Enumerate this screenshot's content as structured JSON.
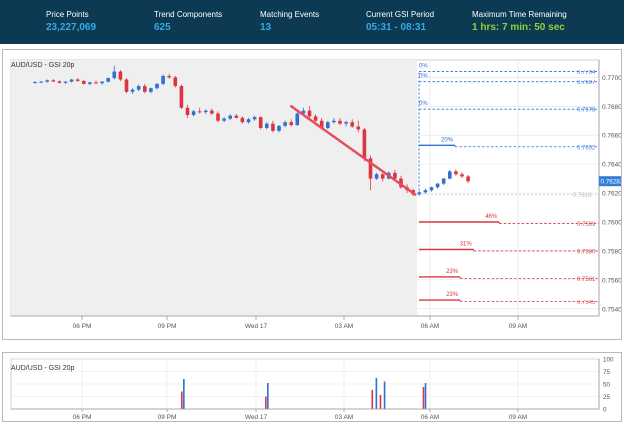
{
  "header": {
    "stats": [
      {
        "label": "Price Points",
        "value": "23,227,069",
        "color": "#36a9e8"
      },
      {
        "label": "Trend Components",
        "value": "625",
        "color": "#36a9e8"
      },
      {
        "label": "Matching Events",
        "value": "13",
        "color": "#36a9e8"
      },
      {
        "label": "Current GSI Period",
        "value": "05:31 - 08:31",
        "color": "#36a9e8"
      },
      {
        "label": "Maximum Time Remaining",
        "value": "1 hrs: 7 min: 50 sec",
        "color": "#8bd33a"
      }
    ]
  },
  "main_chart": {
    "title": "AUD/USD - GSI 20p",
    "current_price": "0.76282",
    "x_ticks": [
      "06 PM",
      "09 PM",
      "Wed 17",
      "03 AM",
      "06 AM",
      "09 AM"
    ],
    "y_ticks": [
      "0.7700",
      "0.7680",
      "0.7660",
      "0.7640",
      "0.7620",
      "0.7600",
      "0.7580",
      "0.7560",
      "0.7540"
    ],
    "colors": {
      "up": "#2f6fd6",
      "down": "#d93641",
      "trend": "#e84a5f",
      "shade": "#efefef"
    }
  },
  "volume_chart": {
    "title": "AUD/USD - GSI 20p",
    "x_ticks": [
      "06 PM",
      "09 PM",
      "Wed 17",
      "03 AM",
      "06 AM",
      "09 AM"
    ],
    "y_ticks": [
      "100",
      "75",
      "50",
      "25",
      "0"
    ]
  },
  "chart_data": [
    {
      "type": "candlestick",
      "title": "AUD/USD - GSI 20p",
      "x_ticks": [
        "06 PM",
        "09 PM",
        "Wed 17",
        "03 AM",
        "06 AM",
        "09 AM"
      ],
      "ylim": [
        0.7535,
        0.7712
      ],
      "current_price": 0.76282,
      "candles": [
        [
          0.76965,
          0.76972,
          0.76955,
          0.76968
        ],
        [
          0.76968,
          0.76975,
          0.7696,
          0.7697
        ],
        [
          0.7697,
          0.76985,
          0.76962,
          0.7698
        ],
        [
          0.7698,
          0.76988,
          0.76968,
          0.76972
        ],
        [
          0.76972,
          0.7698,
          0.76958,
          0.76962
        ],
        [
          0.76962,
          0.76975,
          0.76955,
          0.7697
        ],
        [
          0.7697,
          0.7699,
          0.76965,
          0.76985
        ],
        [
          0.76985,
          0.76995,
          0.7697,
          0.76975
        ],
        [
          0.76975,
          0.76982,
          0.7695,
          0.76955
        ],
        [
          0.76955,
          0.7697,
          0.76945,
          0.76965
        ],
        [
          0.76965,
          0.76978,
          0.76955,
          0.7696
        ],
        [
          0.7696,
          0.76975,
          0.7695,
          0.7697
        ],
        [
          0.7697,
          0.77,
          0.76965,
          0.76995
        ],
        [
          0.76995,
          0.7708,
          0.76985,
          0.7704
        ],
        [
          0.7704,
          0.7705,
          0.76975,
          0.76985
        ],
        [
          0.76985,
          0.76995,
          0.7689,
          0.769
        ],
        [
          0.769,
          0.76925,
          0.76885,
          0.76915
        ],
        [
          0.76915,
          0.7695,
          0.76905,
          0.7694
        ],
        [
          0.7694,
          0.76955,
          0.7689,
          0.769
        ],
        [
          0.769,
          0.7693,
          0.7689,
          0.76925
        ],
        [
          0.76925,
          0.7696,
          0.76915,
          0.76955
        ],
        [
          0.76955,
          0.7702,
          0.76945,
          0.7701
        ],
        [
          0.7701,
          0.77025,
          0.7699,
          0.77
        ],
        [
          0.77,
          0.7701,
          0.7693,
          0.7694
        ],
        [
          0.7694,
          0.7695,
          0.7678,
          0.7679
        ],
        [
          0.7679,
          0.7681,
          0.7672,
          0.7674
        ],
        [
          0.7674,
          0.76775,
          0.7673,
          0.76765
        ],
        [
          0.76765,
          0.7679,
          0.7675,
          0.7676
        ],
        [
          0.7676,
          0.7678,
          0.76745,
          0.7677
        ],
        [
          0.7677,
          0.76785,
          0.7674,
          0.7675
        ],
        [
          0.7675,
          0.76765,
          0.7669,
          0.767
        ],
        [
          0.767,
          0.76725,
          0.7669,
          0.76715
        ],
        [
          0.76715,
          0.76745,
          0.76705,
          0.76735
        ],
        [
          0.76735,
          0.76745,
          0.76715,
          0.7672
        ],
        [
          0.7672,
          0.7673,
          0.7668,
          0.7669
        ],
        [
          0.7669,
          0.7672,
          0.7668,
          0.7671
        ],
        [
          0.7671,
          0.76735,
          0.767,
          0.76725
        ],
        [
          0.76725,
          0.7673,
          0.7664,
          0.7665
        ],
        [
          0.7665,
          0.7669,
          0.7664,
          0.7668
        ],
        [
          0.7668,
          0.767,
          0.7662,
          0.7663
        ],
        [
          0.7663,
          0.7667,
          0.7662,
          0.76665
        ],
        [
          0.76665,
          0.767,
          0.76655,
          0.7669
        ],
        [
          0.7669,
          0.7671,
          0.7666,
          0.7667
        ],
        [
          0.7667,
          0.7676,
          0.76665,
          0.7675
        ],
        [
          0.7675,
          0.7679,
          0.7674,
          0.7677
        ],
        [
          0.7677,
          0.768,
          0.7672,
          0.7673
        ],
        [
          0.7673,
          0.76745,
          0.7669,
          0.767
        ],
        [
          0.767,
          0.7672,
          0.7664,
          0.7665
        ],
        [
          0.7665,
          0.767,
          0.7664,
          0.7669
        ],
        [
          0.7669,
          0.7672,
          0.7668,
          0.767
        ],
        [
          0.767,
          0.7672,
          0.7667,
          0.7668
        ],
        [
          0.7668,
          0.767,
          0.7666,
          0.7669
        ],
        [
          0.7669,
          0.7671,
          0.7665,
          0.7666
        ],
        [
          0.7666,
          0.767,
          0.7662,
          0.7664
        ],
        [
          0.7664,
          0.7665,
          0.7642,
          0.7644
        ],
        [
          0.7644,
          0.7646,
          0.7622,
          0.763
        ],
        [
          0.763,
          0.7634,
          0.7629,
          0.7633
        ],
        [
          0.7633,
          0.7634,
          0.7628,
          0.763
        ],
        [
          0.763,
          0.7635,
          0.76295,
          0.7634
        ],
        [
          0.7634,
          0.7636,
          0.7629,
          0.763
        ],
        [
          0.763,
          0.7632,
          0.7623,
          0.7624
        ],
        [
          0.7624,
          0.7626,
          0.762,
          0.7622
        ],
        [
          0.7622,
          0.7623,
          0.7618,
          0.7619
        ],
        [
          0.7619,
          0.76215,
          0.7618,
          0.76205
        ],
        [
          0.76205,
          0.7623,
          0.76195,
          0.7622
        ],
        [
          0.7622,
          0.76245,
          0.7621,
          0.7624
        ],
        [
          0.7624,
          0.7627,
          0.7623,
          0.76265
        ],
        [
          0.76265,
          0.76305,
          0.76255,
          0.763
        ],
        [
          0.763,
          0.7636,
          0.76295,
          0.7635
        ],
        [
          0.7635,
          0.76365,
          0.7632,
          0.7633
        ],
        [
          0.7633,
          0.76345,
          0.76305,
          0.76315
        ],
        [
          0.76315,
          0.76325,
          0.7627,
          0.76282
        ]
      ]
    },
    {
      "type": "bar",
      "title": "AUD/USD - GSI 20p",
      "x_ticks": [
        "06 PM",
        "09 PM",
        "Wed 17",
        "03 AM",
        "06 AM",
        "09 AM"
      ],
      "ylim": [
        0,
        100
      ],
      "bars": [
        {
          "slot": 83,
          "value": 35,
          "color": "#d93641"
        },
        {
          "slot": 84,
          "value": 60,
          "color": "#2f6fd6"
        },
        {
          "slot": 124,
          "value": 25,
          "color": "#d93641"
        },
        {
          "slot": 125,
          "value": 52,
          "color": "#2f6fd6"
        },
        {
          "slot": 176,
          "value": 38,
          "color": "#d93641"
        },
        {
          "slot": 178,
          "value": 62,
          "color": "#2f6fd6"
        },
        {
          "slot": 180,
          "value": 28,
          "color": "#d93641"
        },
        {
          "slot": 182,
          "value": 55,
          "color": "#2f6fd6"
        },
        {
          "slot": 201,
          "value": 44,
          "color": "#d93641"
        },
        {
          "slot": 202,
          "value": 52,
          "color": "#2f6fd6"
        }
      ]
    }
  ],
  "events": {
    "start_price": 0.7619,
    "trend_line": {
      "from_candle": 42,
      "from_price": 0.768,
      "to_candle": 62,
      "to_price": 0.7619
    },
    "ups": [
      {
        "pct": "0%",
        "price": 0.7619,
        "target": 0.7704,
        "label": "0.7704"
      },
      {
        "pct": "0%",
        "price": 0.7619,
        "target": 0.7697,
        "label": "0.7697"
      },
      {
        "pct": "0%",
        "price": 0.7619,
        "target": 0.7678,
        "label": "0.7678"
      },
      {
        "pct": "20%",
        "price": 0.7653,
        "target": 0.7652,
        "label": "0.7652"
      }
    ],
    "downs": [
      {
        "pct": "46%",
        "price": 0.76,
        "target": 0.7599,
        "label": "0.7599"
      },
      {
        "pct": "31%",
        "price": 0.7581,
        "target": 0.758,
        "label": "0.7580"
      },
      {
        "pct": "23%",
        "price": 0.7562,
        "target": 0.7561,
        "label": "0.7561"
      },
      {
        "pct": "23%",
        "price": 0.7546,
        "target": 0.7545,
        "label": "0.7545"
      }
    ],
    "start_label": "0.7619"
  }
}
